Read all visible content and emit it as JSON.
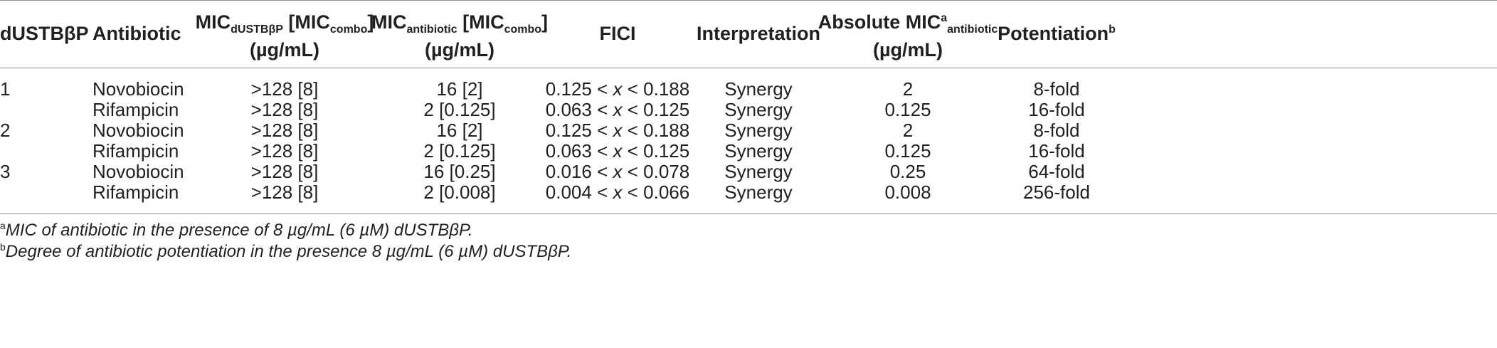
{
  "headers": {
    "dustb": "dUSTBβP",
    "antibiotic": "Antibiotic",
    "mic_dustb": {
      "main": "MIC",
      "sub": "dUSTBβP",
      "rest": " [MIC",
      "sub2": "combo",
      "end": "]",
      "unit": "(µg/mL)"
    },
    "mic_antibiotic": {
      "main": "MIC",
      "sub": "antibiotic",
      "rest": " [MIC",
      "sub2": "combo",
      "end": "]",
      "unit": "(µg/mL)"
    },
    "fici": "FICI",
    "interpretation": "Interpretation",
    "absolute_mic": {
      "main": "Absolute MIC",
      "sup": "a",
      "sub": "antibiotic",
      "unit": "(µg/mL)"
    },
    "potentiation": {
      "main": "Potentiation",
      "sup": "b"
    }
  },
  "rows": [
    {
      "dustb": "1",
      "antibiotic": "Novobiocin",
      "mic_dustb": ">128 [8]",
      "mic_antibiotic": "16 [2]",
      "fici_lo": "0.125 <",
      "fici_x": "x",
      "fici_hi": "< 0.188",
      "interpretation": "Synergy",
      "absolute": "2",
      "potentiation": "8-fold"
    },
    {
      "dustb": "",
      "antibiotic": "Rifampicin",
      "mic_dustb": ">128 [8]",
      "mic_antibiotic": "2 [0.125]",
      "fici_lo": "0.063 <",
      "fici_x": "x",
      "fici_hi": "< 0.125",
      "interpretation": "Synergy",
      "absolute": "0.125",
      "potentiation": "16-fold"
    },
    {
      "dustb": "2",
      "antibiotic": "Novobiocin",
      "mic_dustb": ">128 [8]",
      "mic_antibiotic": "16 [2]",
      "fici_lo": "0.125 <",
      "fici_x": "x",
      "fici_hi": "< 0.188",
      "interpretation": "Synergy",
      "absolute": "2",
      "potentiation": "8-fold"
    },
    {
      "dustb": "",
      "antibiotic": "Rifampicin",
      "mic_dustb": ">128 [8]",
      "mic_antibiotic": "2 [0.125]",
      "fici_lo": "0.063 <",
      "fici_x": "x",
      "fici_hi": "< 0.125",
      "interpretation": "Synergy",
      "absolute": "0.125",
      "potentiation": "16-fold"
    },
    {
      "dustb": "3",
      "antibiotic": "Novobiocin",
      "mic_dustb": ">128 [8]",
      "mic_antibiotic": "16 [0.25]",
      "fici_lo": "0.016 <",
      "fici_x": "x",
      "fici_hi": "< 0.078",
      "interpretation": "Synergy",
      "absolute": "0.25",
      "potentiation": "64-fold"
    },
    {
      "dustb": "",
      "antibiotic": "Rifampicin",
      "mic_dustb": ">128 [8]",
      "mic_antibiotic": "2 [0.008]",
      "fici_lo": "0.004 <",
      "fici_x": "x",
      "fici_hi": "< 0.066",
      "interpretation": "Synergy",
      "absolute": "0.008",
      "potentiation": "256-fold"
    }
  ],
  "footnotes": [
    {
      "mark": "a",
      "text": "MIC of antibiotic in the presence of 8 µg/mL (6 µM) dUSTBβP."
    },
    {
      "mark": "b",
      "text": "Degree of antibiotic potentiation in the presence 8 µg/mL (6 µM) dUSTBβP."
    }
  ]
}
